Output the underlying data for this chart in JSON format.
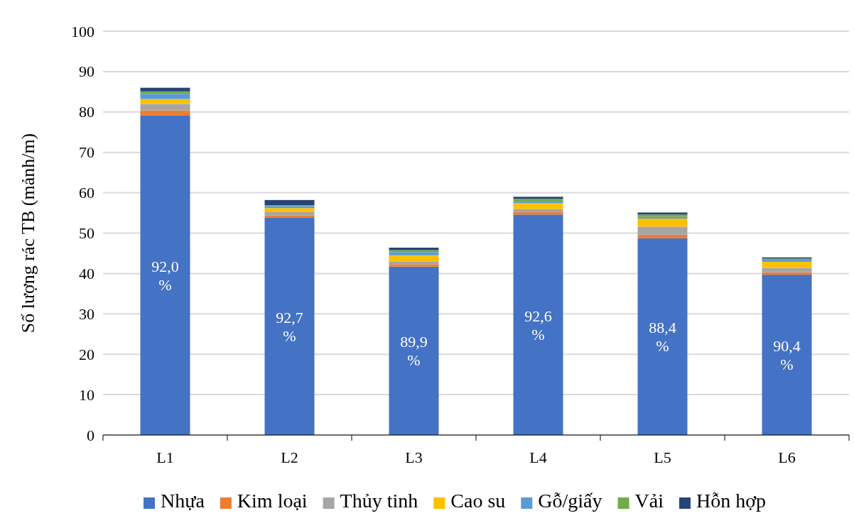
{
  "chart_data": {
    "type": "bar",
    "stacked": true,
    "ylabel": "Số lượng rác TB (mảnh/m)",
    "categories": [
      "L1",
      "L2",
      "L3",
      "L4",
      "L5",
      "L6"
    ],
    "series": [
      {
        "name": "Nhựa",
        "color": "#4472c4",
        "values": [
          79.1,
          53.9,
          41.7,
          54.6,
          48.7,
          39.7
        ]
      },
      {
        "name": "Kim loại",
        "color": "#ed7d31",
        "values": [
          1.3,
          0.5,
          0.6,
          0.7,
          0.9,
          0.6
        ]
      },
      {
        "name": "Thủy tinh",
        "color": "#a5a5a5",
        "values": [
          1.6,
          0.8,
          0.7,
          0.7,
          2.0,
          1.1
        ]
      },
      {
        "name": "Cao su",
        "color": "#ffc000",
        "values": [
          1.2,
          1.0,
          1.5,
          1.4,
          2.0,
          1.5
        ]
      },
      {
        "name": "Gỗ/giấy",
        "color": "#5b9bd5",
        "values": [
          1.3,
          0.5,
          0.8,
          0.4,
          0.4,
          0.5
        ]
      },
      {
        "name": "Vải",
        "color": "#70ad47",
        "values": [
          0.6,
          0.2,
          0.5,
          0.7,
          0.6,
          0.3
        ]
      },
      {
        "name": "Hỗn hợp",
        "color": "#264478",
        "values": [
          0.9,
          1.3,
          0.6,
          0.5,
          0.5,
          0.3
        ]
      }
    ],
    "ylim": [
      0,
      100
    ],
    "yticks": [
      0,
      10,
      20,
      30,
      40,
      50,
      60,
      70,
      80,
      90,
      100
    ],
    "grid": "y",
    "legend": "bottom",
    "annotations": [
      "92,0 %",
      "92,7 %",
      "89,9 %",
      "92,6 %",
      "88,4 %",
      "90,4 %"
    ]
  }
}
